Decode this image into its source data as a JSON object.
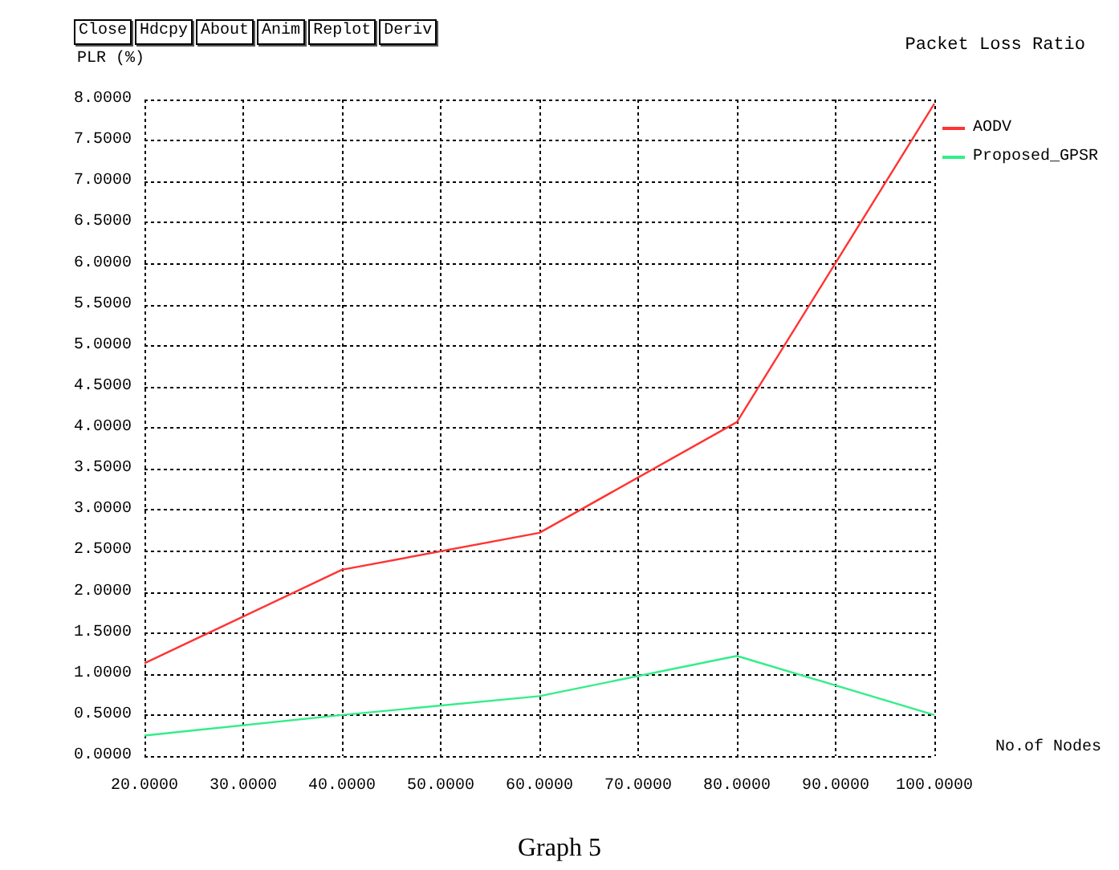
{
  "chart_data": {
    "type": "line",
    "title": "Packet Loss Ratio",
    "xlabel": "No.of Nodes",
    "ylabel": "PLR (%)",
    "annotations": [
      "Close",
      "Hdcpy",
      "About",
      "Anim",
      "Replot",
      "Deriv",
      "Graph 5"
    ],
    "x": [
      20,
      40,
      60,
      80,
      100
    ],
    "series": [
      {
        "name": "AODV",
        "color": "#ff3333",
        "values": [
          1.13,
          2.27,
          2.72,
          4.07,
          7.95
        ]
      },
      {
        "name": "Proposed_GPSR",
        "color": "#33ee88",
        "values": [
          0.25,
          0.5,
          0.73,
          1.22,
          0.5
        ]
      }
    ],
    "xlim": [
      20,
      100
    ],
    "xticks": [
      {
        "value": 20,
        "label": "20.0000"
      },
      {
        "value": 30,
        "label": "30.0000"
      },
      {
        "value": 40,
        "label": "40.0000"
      },
      {
        "value": 50,
        "label": "50.0000"
      },
      {
        "value": 60,
        "label": "60.0000"
      },
      {
        "value": 70,
        "label": "70.0000"
      },
      {
        "value": 80,
        "label": "80.0000"
      },
      {
        "value": 90,
        "label": "90.0000"
      },
      {
        "value": 100,
        "label": "100.0000"
      }
    ],
    "ylim": [
      0,
      8
    ],
    "yticks": [
      {
        "value": 0,
        "label": "0.0000"
      },
      {
        "value": 0.5,
        "label": "0.5000"
      },
      {
        "value": 1,
        "label": "1.0000"
      },
      {
        "value": 1.5,
        "label": "1.5000"
      },
      {
        "value": 2,
        "label": "2.0000"
      },
      {
        "value": 2.5,
        "label": "2.5000"
      },
      {
        "value": 3,
        "label": "3.0000"
      },
      {
        "value": 3.5,
        "label": "3.5000"
      },
      {
        "value": 4,
        "label": "4.0000"
      },
      {
        "value": 4.5,
        "label": "4.5000"
      },
      {
        "value": 5,
        "label": "5.0000"
      },
      {
        "value": 5.5,
        "label": "5.5000"
      },
      {
        "value": 6,
        "label": "6.0000"
      },
      {
        "value": 6.5,
        "label": "6.5000"
      },
      {
        "value": 7,
        "label": "7.0000"
      },
      {
        "value": 7.5,
        "label": "7.5000"
      },
      {
        "value": 8,
        "label": "8.0000"
      }
    ],
    "grid": true,
    "legend": "right",
    "marker": "none"
  }
}
